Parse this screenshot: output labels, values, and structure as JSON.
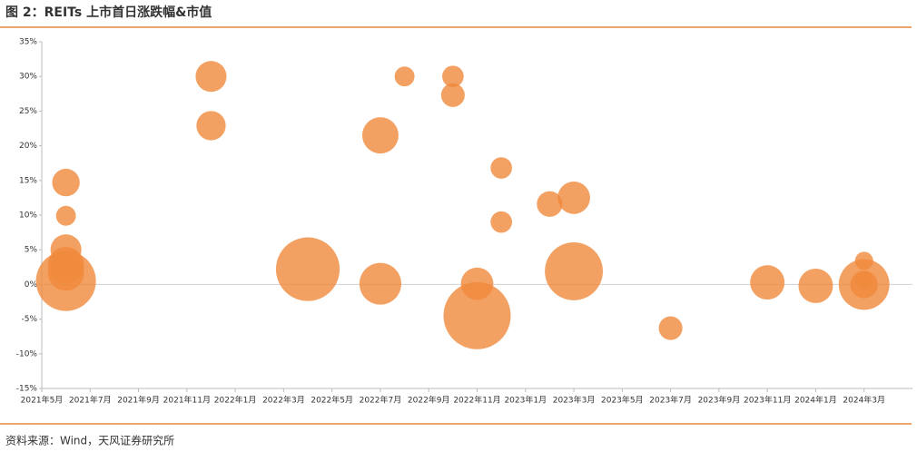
{
  "chart_data": {
    "type": "bubble",
    "title": "图 2：REITs 上市首日涨跌幅&市值",
    "source": "资料来源：Wind，天风证券研究所",
    "x": [
      "2021-06",
      "2021-06",
      "2021-06",
      "2021-06",
      "2021-06",
      "2021-06",
      "2021-12",
      "2021-12",
      "2022-04",
      "2022-07",
      "2022-07",
      "2022-08",
      "2022-10",
      "2022-10",
      "2022-11",
      "2022-11",
      "2022-12",
      "2022-12",
      "2023-02",
      "2023-03",
      "2023-03",
      "2023-07",
      "2023-11",
      "2024-01",
      "2024-03",
      "2024-03",
      "2024-03",
      "2024-03"
    ],
    "values": [
      0.5,
      2.8,
      5.0,
      1.7,
      9.9,
      14.7,
      30.0,
      22.9,
      2.2,
      0.1,
      21.5,
      30.0,
      30.0,
      27.3,
      0.1,
      -4.5,
      16.8,
      9.0,
      11.6,
      12.5,
      1.9,
      -6.3,
      0.3,
      -0.2,
      0.0,
      3.4,
      0.6,
      0.0
    ],
    "sizes": [
      109,
      40,
      29,
      40,
      12,
      23,
      29,
      26,
      123,
      53,
      40,
      12,
      14,
      17,
      32,
      137,
      14,
      14,
      20,
      32,
      102,
      17,
      36,
      36,
      78,
      10,
      10,
      23
    ],
    "color": "#f08a3c",
    "xlim": [
      "2021-05",
      "2024-05"
    ],
    "xticks": [
      {
        "value": "2021-05",
        "label": "2021年5月"
      },
      {
        "value": "2021-07",
        "label": "2021年7月"
      },
      {
        "value": "2021-09",
        "label": "2021年9月"
      },
      {
        "value": "2021-11",
        "label": "2021年11月"
      },
      {
        "value": "2022-01",
        "label": "2022年1月"
      },
      {
        "value": "2022-03",
        "label": "2022年3月"
      },
      {
        "value": "2022-05",
        "label": "2022年5月"
      },
      {
        "value": "2022-07",
        "label": "2022年7月"
      },
      {
        "value": "2022-09",
        "label": "2022年9月"
      },
      {
        "value": "2022-11",
        "label": "2022年11月"
      },
      {
        "value": "2023-01",
        "label": "2023年1月"
      },
      {
        "value": "2023-03",
        "label": "2023年3月"
      },
      {
        "value": "2023-05",
        "label": "2023年5月"
      },
      {
        "value": "2023-07",
        "label": "2023年7月"
      },
      {
        "value": "2023-09",
        "label": "2023年9月"
      },
      {
        "value": "2023-11",
        "label": "2023年11月"
      },
      {
        "value": "2024-01",
        "label": "2024年1月"
      },
      {
        "value": "2024-03",
        "label": "2024年3月"
      }
    ],
    "ylim": [
      -15,
      35
    ],
    "yticks": [
      {
        "value": -15,
        "label": "-15%"
      },
      {
        "value": -10,
        "label": "-10%"
      },
      {
        "value": -5,
        "label": "-5%"
      },
      {
        "value": 0,
        "label": "0%"
      },
      {
        "value": 5,
        "label": "5%"
      },
      {
        "value": 10,
        "label": "10%"
      },
      {
        "value": 15,
        "label": "15%"
      },
      {
        "value": 20,
        "label": "20%"
      },
      {
        "value": 25,
        "label": "25%"
      },
      {
        "value": 30,
        "label": "30%"
      },
      {
        "value": 35,
        "label": "35%"
      }
    ]
  }
}
